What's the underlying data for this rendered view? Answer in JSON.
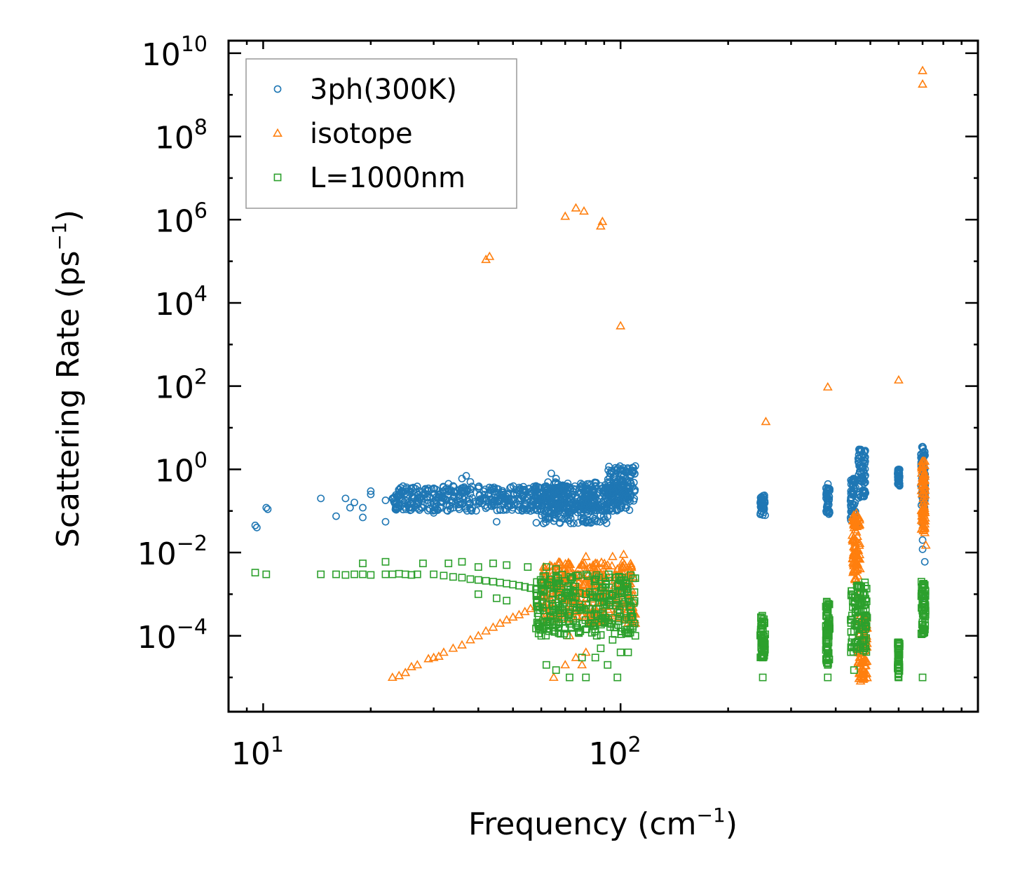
{
  "chart_data": {
    "type": "scatter",
    "title": "",
    "xlabel": "Frequency (cm",
    "xlabel_sup": "−1",
    "xlabel_end": ")",
    "ylabel": "Scattering Rate (ps",
    "ylabel_sup": "−1",
    "ylabel_end": ")",
    "xscale": "log",
    "yscale": "log",
    "xlim": [
      8.0,
      1000.0
    ],
    "ylim": [
      1.5e-06,
      20000000000.0
    ],
    "x_ticks": [
      {
        "value": 10,
        "base": "10",
        "exp": "1"
      },
      {
        "value": 100,
        "base": "10",
        "exp": "2"
      }
    ],
    "y_ticks": [
      {
        "value": 0.0001,
        "base": "10",
        "exp": "−4"
      },
      {
        "value": 0.01,
        "base": "10",
        "exp": "−2"
      },
      {
        "value": 1,
        "base": "10",
        "exp": "0"
      },
      {
        "value": 100,
        "base": "10",
        "exp": "2"
      },
      {
        "value": 10000.0,
        "base": "10",
        "exp": "4"
      },
      {
        "value": 1000000.0,
        "base": "10",
        "exp": "6"
      },
      {
        "value": 100000000.0,
        "base": "10",
        "exp": "8"
      },
      {
        "value": 10000000000.0,
        "base": "10",
        "exp": "10"
      }
    ],
    "legend_position": "top-left",
    "series": [
      {
        "name": "3ph(300K)",
        "marker": "circle",
        "color": "#1f77b4",
        "points": [
          [
            9.5,
            0.045
          ],
          [
            9.6,
            0.04
          ],
          [
            10.2,
            0.12
          ],
          [
            10.3,
            0.11
          ],
          [
            14.5,
            0.2
          ],
          [
            16,
            0.075
          ],
          [
            17,
            0.2
          ],
          [
            17.5,
            0.12
          ],
          [
            18,
            0.16
          ],
          [
            19,
            0.07
          ],
          [
            19,
            0.12
          ],
          [
            20,
            0.3
          ],
          [
            20,
            0.25
          ],
          [
            22,
            0.055
          ],
          [
            22,
            0.18
          ],
          [
            23,
            0.2
          ],
          [
            24,
            0.12
          ],
          [
            24,
            0.15
          ],
          [
            25,
            0.18
          ],
          [
            26,
            0.15
          ],
          [
            26.5,
            0.2
          ],
          [
            27,
            0.18
          ],
          [
            28,
            0.14
          ],
          [
            29,
            0.35
          ],
          [
            30,
            0.35
          ],
          [
            30,
            0.09
          ],
          [
            31,
            0.25
          ],
          [
            32,
            0.2
          ],
          [
            33,
            0.45
          ],
          [
            34,
            0.4
          ],
          [
            35,
            0.3
          ],
          [
            36,
            0.6
          ],
          [
            37,
            0.7
          ],
          [
            38,
            0.5
          ],
          [
            40,
            0.35
          ],
          [
            42,
            0.2
          ],
          [
            44,
            0.15
          ],
          [
            45,
            0.055
          ],
          [
            47,
            0.25
          ],
          [
            48,
            0.18
          ],
          [
            50,
            0.12
          ],
          [
            52,
            0.2
          ],
          [
            54,
            0.15
          ],
          [
            56,
            0.1
          ],
          [
            58,
            0.4
          ],
          [
            60,
            0.2
          ],
          [
            62,
            0.15
          ],
          [
            64,
            0.8
          ],
          [
            66,
            0.6
          ],
          [
            68,
            0.3
          ],
          [
            70,
            0.15
          ],
          [
            72,
            0.08
          ],
          [
            74,
            0.12
          ],
          [
            76,
            0.2
          ],
          [
            78,
            0.35
          ],
          [
            80,
            0.15
          ],
          [
            82,
            0.1
          ],
          [
            85,
            0.2
          ],
          [
            88,
            0.4
          ],
          [
            90,
            0.3
          ],
          [
            95,
            0.1
          ],
          [
            98,
            0.4
          ],
          [
            100,
            0.5
          ],
          [
            102,
            0.7
          ],
          [
            105,
            1.0
          ],
          [
            108,
            1.1
          ],
          [
            110,
            1.2
          ],
          [
            250,
            0.08
          ],
          [
            250,
            0.12
          ],
          [
            250,
            0.2
          ],
          [
            380,
            0.1
          ],
          [
            380,
            0.2
          ],
          [
            380,
            0.35
          ],
          [
            450,
            0.3
          ],
          [
            460,
            0.05
          ],
          [
            470,
            1.5
          ],
          [
            470,
            3.0
          ],
          [
            480,
            0.8
          ],
          [
            480,
            0.3
          ],
          [
            600,
            0.5
          ],
          [
            600,
            0.9
          ],
          [
            700,
            1.5
          ],
          [
            700,
            3.5
          ],
          [
            700,
            0.2
          ],
          [
            700,
            0.05
          ],
          [
            700,
            0.02
          ],
          [
            700,
            0.012
          ],
          [
            710,
            0.006
          ],
          [
            710,
            0.35
          ],
          [
            710,
            0.0008
          ]
        ],
        "bands": [
          {
            "x0": 23,
            "x1": 110,
            "y0": 0.1,
            "y1": 0.4
          },
          {
            "x0": 58,
            "x1": 92,
            "y0": 0.05,
            "y1": 0.5
          },
          {
            "x0": 92,
            "x1": 110,
            "y0": 0.2,
            "y1": 1.2
          },
          {
            "x0": 246,
            "x1": 254,
            "y0": 0.07,
            "y1": 0.25
          },
          {
            "x0": 375,
            "x1": 385,
            "y0": 0.08,
            "y1": 0.45
          },
          {
            "x0": 440,
            "x1": 455,
            "y0": 0.06,
            "y1": 0.6
          },
          {
            "x0": 462,
            "x1": 485,
            "y0": 0.2,
            "y1": 3.2
          },
          {
            "x0": 596,
            "x1": 604,
            "y0": 0.4,
            "y1": 1.0
          },
          {
            "x0": 692,
            "x1": 712,
            "y0": 0.1,
            "y1": 3.8
          }
        ]
      },
      {
        "name": "isotope",
        "marker": "triangle",
        "color": "#ff7f0e",
        "points": [
          [
            23,
            1e-05
          ],
          [
            24,
            1.1e-05
          ],
          [
            25,
            1.3e-05
          ],
          [
            26,
            1.8e-05
          ],
          [
            27,
            2e-05
          ],
          [
            29,
            2.8e-05
          ],
          [
            30,
            3e-05
          ],
          [
            31,
            3.2e-05
          ],
          [
            32,
            4e-05
          ],
          [
            34,
            5e-05
          ],
          [
            36,
            6e-05
          ],
          [
            38,
            8e-05
          ],
          [
            40,
            0.0001
          ],
          [
            42,
            0.00013
          ],
          [
            44,
            0.00016
          ],
          [
            46,
            0.0002
          ],
          [
            48,
            0.00024
          ],
          [
            50,
            0.00028
          ],
          [
            52,
            0.00032
          ],
          [
            54,
            0.00038
          ],
          [
            56,
            0.00045
          ],
          [
            58,
            0.0005
          ],
          [
            60,
            0.0007
          ],
          [
            62,
            0.0009
          ],
          [
            65,
            0.0012
          ],
          [
            68,
            0.0015
          ],
          [
            70,
            0.002
          ],
          [
            74,
            0.003
          ],
          [
            78,
            0.005
          ],
          [
            80,
            0.008
          ],
          [
            85,
            0.003
          ],
          [
            88,
            0.0008
          ],
          [
            92,
            0.005
          ],
          [
            95,
            0.008
          ],
          [
            98,
            0.004
          ],
          [
            100,
            0.0012
          ],
          [
            102,
            0.009
          ],
          [
            105,
            0.002
          ],
          [
            108,
            0.0005
          ],
          [
            110,
            0.0002
          ],
          [
            72,
            0.0001
          ],
          [
            75,
            3e-05
          ],
          [
            78,
            2e-05
          ],
          [
            80,
            4e-05
          ],
          [
            70,
            2e-05
          ],
          [
            65,
            1e-05
          ],
          [
            42,
            110000.0
          ],
          [
            43,
            130000.0
          ],
          [
            70,
            1200000.0
          ],
          [
            75,
            1900000.0
          ],
          [
            79,
            1600000.0
          ],
          [
            88,
            700000.0
          ],
          [
            89,
            900000.0
          ],
          [
            100,
            2800.0
          ],
          [
            255,
            14
          ],
          [
            380,
            95
          ],
          [
            600,
            140
          ],
          [
            700,
            3800000000.0
          ],
          [
            700,
            1800000000.0
          ],
          [
            450,
            0.05
          ],
          [
            455,
            0.02
          ],
          [
            460,
            0.005
          ],
          [
            465,
            0.001
          ],
          [
            470,
            0.0003
          ],
          [
            475,
            0.0001
          ],
          [
            478,
            3e-05
          ],
          [
            480,
            1e-05
          ],
          [
            700,
            0.5
          ],
          [
            705,
            0.1
          ],
          [
            710,
            0.03
          ],
          [
            715,
            0.015
          ]
        ],
        "bands": [
          {
            "x0": 60,
            "x1": 110,
            "y0": 0.0002,
            "y1": 0.006
          },
          {
            "x0": 445,
            "x1": 468,
            "y0": 0.002,
            "y1": 0.09
          },
          {
            "x0": 462,
            "x1": 490,
            "y0": 8e-06,
            "y1": 0.0003
          },
          {
            "x0": 694,
            "x1": 712,
            "y0": 0.03,
            "y1": 1.6
          }
        ]
      },
      {
        "name": "L=1000nm",
        "marker": "square",
        "color": "#2ca02c",
        "points": [
          [
            9.5,
            0.0033
          ],
          [
            10.2,
            0.003
          ],
          [
            14.5,
            0.003
          ],
          [
            16,
            0.003
          ],
          [
            17,
            0.0029
          ],
          [
            18,
            0.003
          ],
          [
            19,
            0.003
          ],
          [
            20,
            0.0029
          ],
          [
            22,
            0.003
          ],
          [
            23,
            0.003
          ],
          [
            24,
            0.0031
          ],
          [
            25,
            0.003
          ],
          [
            26,
            0.0029
          ],
          [
            27,
            0.003
          ],
          [
            19,
            0.0055
          ],
          [
            22,
            0.006
          ],
          [
            28,
            0.0055
          ],
          [
            30,
            0.003
          ],
          [
            32,
            0.0028
          ],
          [
            34,
            0.0026
          ],
          [
            36,
            0.0025
          ],
          [
            38,
            0.0023
          ],
          [
            40,
            0.0022
          ],
          [
            42,
            0.0021
          ],
          [
            44,
            0.002
          ],
          [
            46,
            0.0019
          ],
          [
            48,
            0.0018
          ],
          [
            50,
            0.0017
          ],
          [
            52,
            0.0016
          ],
          [
            54,
            0.0015
          ],
          [
            56,
            0.0014
          ],
          [
            58,
            0.0013
          ],
          [
            60,
            0.0012
          ],
          [
            33,
            0.0055
          ],
          [
            36,
            0.006
          ],
          [
            40,
            0.0045
          ],
          [
            44,
            0.0055
          ],
          [
            48,
            0.005
          ],
          [
            55,
            0.0045
          ],
          [
            62,
            0.0045
          ],
          [
            66,
            0.004
          ],
          [
            40,
            0.001
          ],
          [
            45,
            0.0008
          ],
          [
            48,
            0.0007
          ],
          [
            58,
            0.00015
          ],
          [
            60,
            0.0001
          ],
          [
            62,
            2e-05
          ],
          [
            66,
            1.5e-05
          ],
          [
            70,
            0.00015
          ],
          [
            72,
            1e-05
          ],
          [
            78,
            3e-05
          ],
          [
            80,
            1e-05
          ],
          [
            85,
            3e-05
          ],
          [
            88,
            5e-05
          ],
          [
            92,
            2e-05
          ],
          [
            95,
            8e-05
          ],
          [
            98,
            1e-05
          ],
          [
            100,
            4e-05
          ],
          [
            105,
            4e-05
          ],
          [
            110,
            0.0001
          ],
          [
            250,
            1e-05
          ],
          [
            250,
            3e-05
          ],
          [
            380,
            1e-05
          ],
          [
            380,
            2e-05
          ],
          [
            450,
            1.5e-05
          ],
          [
            480,
            0.0001
          ],
          [
            600,
            1e-05
          ],
          [
            700,
            1e-05
          ],
          [
            700,
            0.00015
          ]
        ],
        "bands": [
          {
            "x0": 58,
            "x1": 110,
            "y0": 0.0001,
            "y1": 0.003
          },
          {
            "x0": 246,
            "x1": 254,
            "y0": 3e-05,
            "y1": 0.00035
          },
          {
            "x0": 375,
            "x1": 385,
            "y0": 2e-05,
            "y1": 0.0007
          },
          {
            "x0": 440,
            "x1": 490,
            "y0": 4e-05,
            "y1": 0.002
          },
          {
            "x0": 596,
            "x1": 604,
            "y0": 1e-05,
            "y1": 7e-05
          },
          {
            "x0": 694,
            "x1": 714,
            "y0": 0.0001,
            "y1": 0.002
          }
        ]
      }
    ]
  }
}
